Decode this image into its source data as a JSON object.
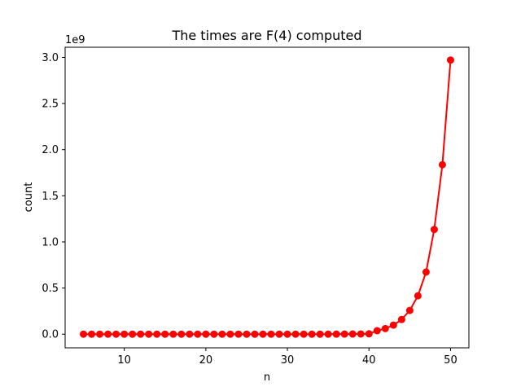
{
  "chart_data": {
    "type": "line",
    "title": "The times are F(4) computed",
    "xlabel": "n",
    "ylabel": "count",
    "y_offset_text": "1e9",
    "xlim": [
      2.75,
      52.25
    ],
    "ylim": [
      -0.148,
      3.11
    ],
    "x_ticks": [
      10,
      20,
      30,
      40,
      50
    ],
    "y_ticks": [
      0.0,
      0.5,
      1.0,
      1.5,
      2.0,
      2.5,
      3.0
    ],
    "y_tick_labels": [
      "0.0",
      "0.5",
      "1.0",
      "1.5",
      "2.0",
      "2.5",
      "3.0"
    ],
    "grid": false,
    "series": [
      {
        "color": "#ff0000",
        "marker": "circle",
        "x": [
          5,
          6,
          7,
          8,
          9,
          10,
          11,
          12,
          13,
          14,
          15,
          16,
          17,
          18,
          19,
          20,
          21,
          22,
          23,
          24,
          25,
          26,
          27,
          28,
          29,
          30,
          31,
          32,
          33,
          34,
          35,
          36,
          37,
          38,
          39,
          40,
          41,
          42,
          43,
          44,
          45,
          46,
          47,
          48,
          49,
          50
        ],
        "y": [
          0,
          0,
          0,
          0,
          0,
          0,
          0,
          0,
          0,
          0,
          0,
          0,
          0,
          0,
          0,
          0,
          0,
          0,
          0,
          0,
          0,
          0,
          0,
          0,
          0,
          0,
          0,
          0,
          0,
          0,
          0,
          0.0006,
          0.001,
          0.0016,
          0.0026,
          0.0042,
          0.0375,
          0.0607,
          0.0982,
          0.1589,
          0.2571,
          0.416,
          0.6731,
          1.1349,
          1.8364,
          2.9713
        ]
      }
    ]
  }
}
